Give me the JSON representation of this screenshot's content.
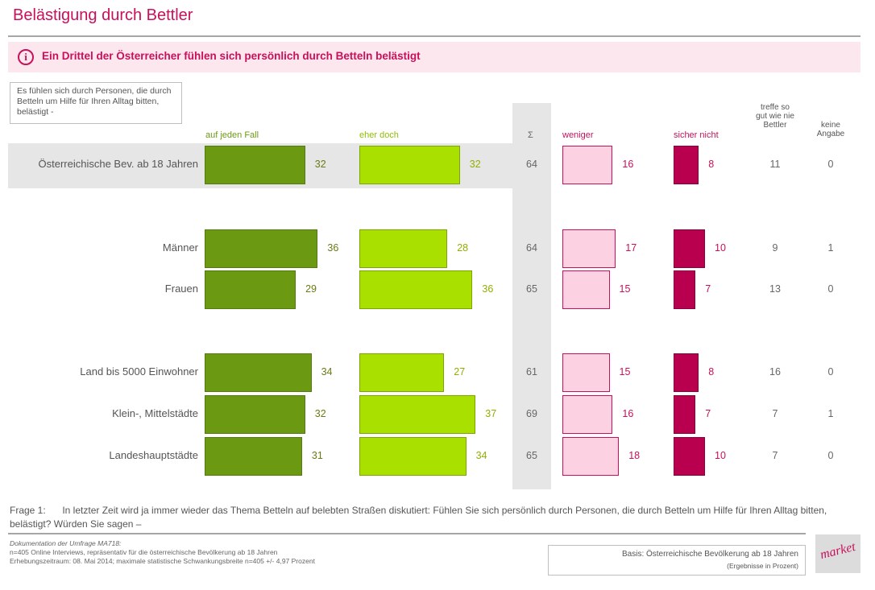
{
  "title": "Belästigung durch Bettler",
  "info_text": "Ein Drittel der Österreicher fühlen sich persönlich durch Betteln belästigt",
  "question_box": "Es fühlen sich durch Personen, die durch Betteln um Hilfe für Ihren Alltag bitten, belästigt -",
  "footer": {
    "frage_label": "Frage 1:",
    "frage_text": "In letzter Zeit wird ja immer wieder das Thema Betteln auf belebten Straßen diskutiert: Fühlen Sie sich persönlich durch Personen, die durch Betteln um Hilfe für Ihren Alltag bitten, belästigt? Würden Sie sagen –",
    "doc_title": "Dokumentation der Umfrage MA718:",
    "doc_line1": "n=405 Online Interviews, repräsentativ für die österreichische Bevölkerung ab 18 Jahren",
    "doc_line2": "Erhebungszeitraum: 08. Mai 2014; maximale statistische Schwankungsbreite n=405 +/- 4,97 Prozent",
    "basis_line1": "Basis: Österreichische Bevölkerung ab 18 Jahren",
    "basis_line2": "(Ergebnisse in Prozent)",
    "logo_text": "market"
  },
  "colors": {
    "accent": "#c8105b",
    "dark_green": "#6b9a12",
    "light_green": "#a9e000",
    "light_pink": "#fcd2e2",
    "dark_pink": "#b8004e",
    "gray_band": "#e6e6e6"
  },
  "chart_data": {
    "type": "bar",
    "orientation": "horizontal",
    "categories": [
      "Österreichische Bev. ab 18 Jahren",
      "Männer",
      "Frauen",
      "Land bis 5000 Einwohner",
      "Klein-, Mittelstädte",
      "Landeshauptstädte"
    ],
    "series": [
      {
        "name": "auf jeden Fall",
        "values": [
          32,
          36,
          29,
          34,
          32,
          31
        ]
      },
      {
        "name": "eher doch",
        "values": [
          32,
          28,
          36,
          27,
          37,
          34
        ]
      },
      {
        "name": "weniger",
        "values": [
          16,
          17,
          15,
          15,
          16,
          18
        ]
      },
      {
        "name": "sicher nicht",
        "values": [
          8,
          10,
          7,
          8,
          7,
          10
        ]
      }
    ],
    "sum": {
      "name": "Σ",
      "values": [
        64,
        64,
        65,
        61,
        69,
        65
      ]
    },
    "treffe": {
      "name": "treffe so gut wie nie Bettler",
      "values": [
        11,
        9,
        13,
        16,
        7,
        7
      ]
    },
    "keine": {
      "name": "keine Angabe",
      "values": [
        0,
        1,
        0,
        0,
        1,
        0
      ]
    },
    "unit": "Prozent"
  }
}
